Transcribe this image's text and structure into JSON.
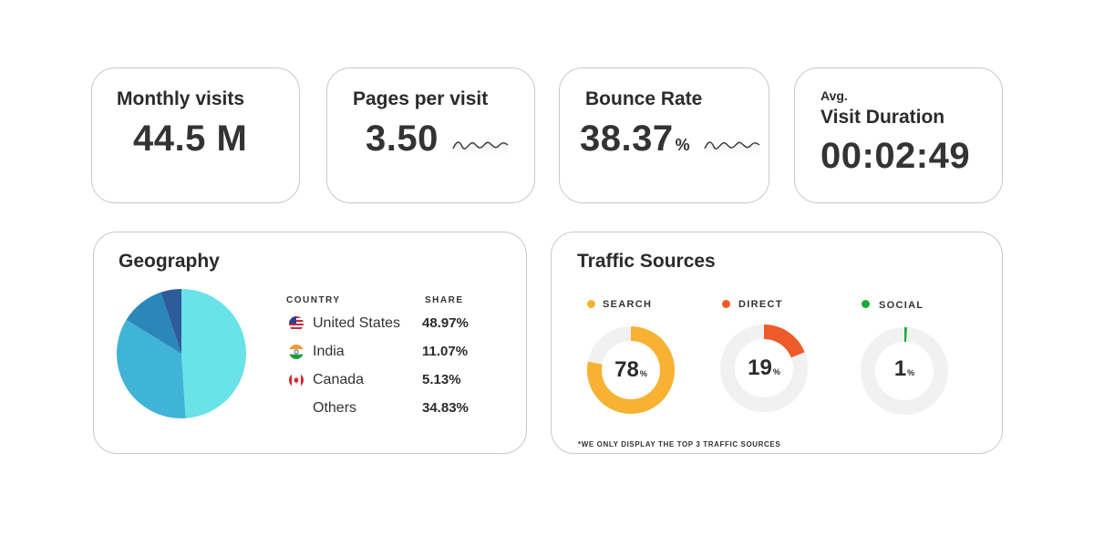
{
  "colors": {
    "search": "#f8b133",
    "direct": "#ef5a2a",
    "social": "#1aaa3a",
    "donut_track": "#f1f1f1",
    "pie_us": "#69e2e8",
    "pie_others": "#40b4d7",
    "pie_india": "#2b86ba",
    "pie_canada": "#2d5b99"
  },
  "kpis": {
    "monthly_visits": {
      "title": "Monthly visits",
      "value": "44.5 M"
    },
    "pages_per_visit": {
      "title": "Pages per visit",
      "value": "3.50",
      "spark_icon": "sparkline-icon"
    },
    "bounce_rate": {
      "title": "Bounce Rate",
      "value": "38.37",
      "unit": "%",
      "spark_icon": "sparkline-icon"
    },
    "visit_duration": {
      "prefix": "Avg.",
      "title": "Visit Duration",
      "value": "00:02:49"
    }
  },
  "geography": {
    "title": "Geography",
    "col_country": "COUNTRY",
    "col_share": "SHARE",
    "rows": [
      {
        "country": "United States",
        "share": "48.97%",
        "flag_icon": "us-flag-icon"
      },
      {
        "country": "India",
        "share": "11.07%",
        "flag_icon": "india-flag-icon"
      },
      {
        "country": "Canada",
        "share": "5.13%",
        "flag_icon": "canada-flag-icon"
      },
      {
        "country": "Others",
        "share": "34.83%",
        "flag_icon": ""
      }
    ],
    "pie_values": [
      48.97,
      34.83,
      11.07,
      5.13
    ]
  },
  "traffic": {
    "title": "Traffic Sources",
    "sources": [
      {
        "label": "SEARCH",
        "value": "78",
        "unit": "%",
        "percent": 78
      },
      {
        "label": "DIRECT",
        "value": "19",
        "unit": "%",
        "percent": 19
      },
      {
        "label": "SOCIAL",
        "value": "1",
        "unit": "%",
        "percent": 1
      }
    ],
    "footnote": "*WE ONLY DISPLAY THE TOP 3 TRAFFIC SOURCES"
  }
}
